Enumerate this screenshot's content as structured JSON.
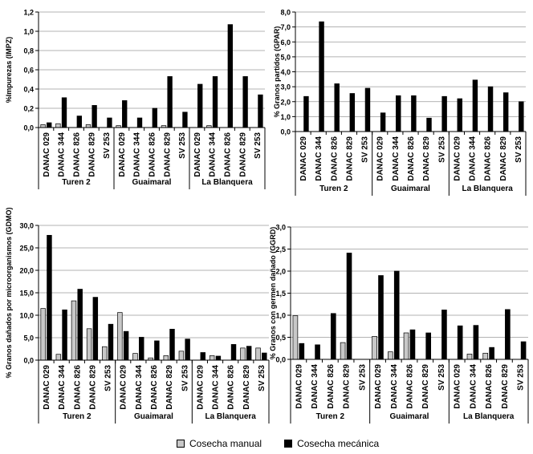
{
  "colors": {
    "manual": "#c8c8c8",
    "mecanica": "#000000",
    "axis": "#000000",
    "grid": "#9a9a9a"
  },
  "legend": {
    "manual": "Cosecha manual",
    "mecanica": "Cosecha mecánica"
  },
  "chart_data": [
    {
      "type": "bar",
      "ylabel": "%Impurezas (IMPZ)",
      "ylim": [
        0,
        1.2
      ],
      "yticks": [
        "0,0",
        "0,2",
        "0,4",
        "0,6",
        "0,8",
        "1,0",
        "1,2"
      ],
      "categories": [
        "DANAC 029",
        "DANAC 344",
        "DANAC 826",
        "DANAC 829",
        "SV 253",
        "DANAC 029",
        "DANAC 344",
        "DANAC 826",
        "DANAC 829",
        "SV 253",
        "DANAC 029",
        "DANAC 344",
        "DANAC 826",
        "DANAC 829",
        "SV 253"
      ],
      "groups": [
        "Turen 2",
        "Guaimaral",
        "La Blanquera"
      ],
      "series": [
        {
          "name": "Cosecha manual",
          "values": [
            0.03,
            0.04,
            0.0,
            0.03,
            0.0,
            0.02,
            0.0,
            0.0,
            0.02,
            0.0,
            0.0,
            0.02,
            0.0,
            0.0,
            0.0
          ]
        },
        {
          "name": "Cosecha mecánica",
          "values": [
            0.05,
            0.31,
            0.12,
            0.23,
            0.1,
            0.28,
            0.1,
            0.2,
            0.53,
            0.16,
            0.45,
            0.53,
            1.07,
            0.53,
            0.34
          ]
        }
      ]
    },
    {
      "type": "bar",
      "ylabel": "% Granos partidos (GPAR)",
      "ylim": [
        0,
        8
      ],
      "yticks": [
        "0,0",
        "1,0",
        "2,0",
        "3,0",
        "4,0",
        "5,0",
        "6,0",
        "7,0",
        "8,0"
      ],
      "categories": [
        "DANAC 029",
        "DANAC 344",
        "DANAC 826",
        "DANAC 829",
        "SV 253",
        "DANAC 029",
        "DANAC 344",
        "DANAC 826",
        "DANAC 829",
        "SV 253",
        "DANAC 029",
        "DANAC 344",
        "DANAC 826",
        "DANAC 829",
        "SV 253"
      ],
      "groups": [
        "Turen 2",
        "Guaimaral",
        "La Blanquera"
      ],
      "series": [
        {
          "name": "Cosecha manual",
          "values": [
            0,
            0,
            0,
            0,
            0,
            0,
            0,
            0,
            0,
            0,
            0,
            0,
            0,
            0,
            0
          ]
        },
        {
          "name": "Cosecha mecánica",
          "values": [
            2.35,
            7.35,
            3.2,
            2.55,
            2.9,
            1.25,
            2.4,
            2.4,
            0.9,
            2.35,
            2.2,
            3.45,
            3.0,
            2.6,
            2.0
          ]
        }
      ]
    },
    {
      "type": "bar",
      "ylabel": "% Granos  dañados por microorganismos (GDMO)",
      "ylim": [
        0,
        30
      ],
      "yticks": [
        "0,0",
        "5,0",
        "10,0",
        "15,0",
        "20,0",
        "25,0",
        "30,0"
      ],
      "categories": [
        "DANAC 029",
        "DANAC 344",
        "DANAC 826",
        "DANAC 829",
        "SV 253",
        "DANAC 029",
        "DANAC 344",
        "DANAC 826",
        "DANAC 829",
        "SV 253",
        "DANAC 029",
        "DANAC 344",
        "DANAC 826",
        "DANAC 829",
        "SV 253"
      ],
      "groups": [
        "Turen 2",
        "Guaimaral",
        "La Blanquera"
      ],
      "series": [
        {
          "name": "Cosecha manual",
          "values": [
            11.5,
            1.3,
            13.2,
            7.0,
            3.0,
            10.6,
            1.5,
            0.5,
            1.0,
            2.0,
            0.0,
            1.0,
            0.0,
            2.7,
            2.7
          ]
        },
        {
          "name": "Cosecha mecánica",
          "values": [
            27.8,
            11.2,
            15.8,
            14.0,
            8.0,
            6.4,
            5.1,
            4.3,
            6.9,
            4.7,
            1.7,
            0.9,
            3.5,
            3.1,
            1.6
          ]
        }
      ]
    },
    {
      "type": "bar",
      "ylabel": "% Granos  con germen dañado (GGRD)",
      "ylim": [
        0,
        3
      ],
      "yticks": [
        "0,0",
        "0,5",
        "1,0",
        "1,5",
        "2,0",
        "2,5",
        "3,0"
      ],
      "categories": [
        "DANAC 029",
        "DANAC 344",
        "DANAC 826",
        "DANAC 829",
        "SV 253",
        "DANAC 029",
        "DANAC 344",
        "DANAC 826",
        "DANAC 829",
        "SV 253",
        "DANAC 029",
        "DANAC 344",
        "DANAC 826",
        "DANAC 829",
        "SV 253"
      ],
      "groups": [
        "Turen 2",
        "Guaimaral",
        "La Blanquera"
      ],
      "series": [
        {
          "name": "Cosecha manual",
          "values": [
            0.99,
            0.0,
            0.0,
            0.38,
            0.0,
            0.52,
            0.17,
            0.6,
            0.0,
            0.0,
            0.0,
            0.12,
            0.14,
            0.0,
            0.0
          ]
        },
        {
          "name": "Cosecha mecánica",
          "values": [
            0.36,
            0.33,
            1.04,
            2.41,
            0.0,
            1.9,
            2.0,
            0.67,
            0.6,
            1.12,
            0.76,
            0.77,
            0.27,
            1.13,
            0.4
          ]
        }
      ]
    }
  ]
}
